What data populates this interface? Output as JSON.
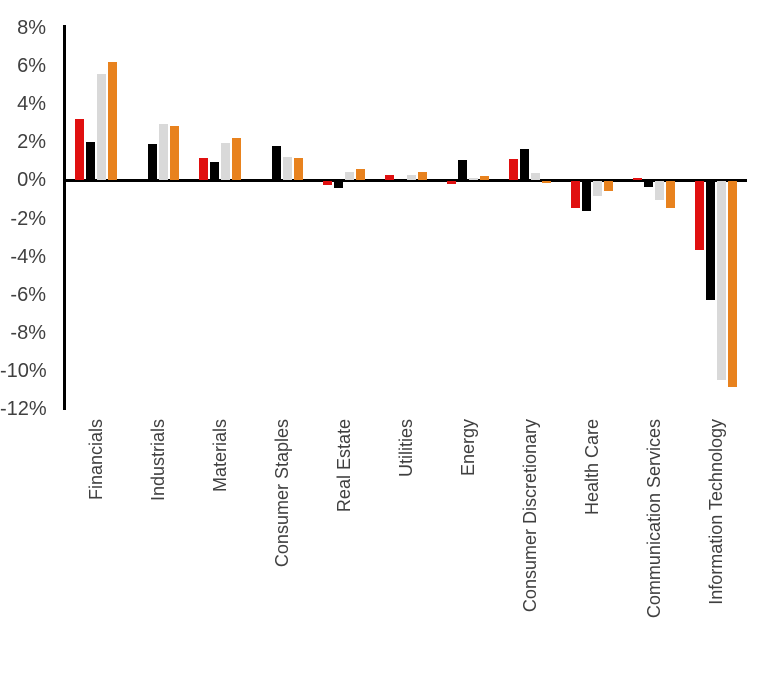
{
  "chart_data": {
    "type": "bar",
    "title": "",
    "xlabel": "",
    "ylabel": "",
    "ylim": [
      -12,
      8
    ],
    "ytick_step": 2,
    "ytick_labels": [
      "8%",
      "6%",
      "4%",
      "2%",
      "0%",
      "-2%",
      "-4%",
      "-6%",
      "-8%",
      "-10%",
      "-12%"
    ],
    "grid": false,
    "legend": "none",
    "text_color": "#404040",
    "axis_color": "#000000",
    "categories": [
      "Financials",
      "Industrials",
      "Materials",
      "Consumer Staples",
      "Real Estate",
      "Utilities",
      "Energy",
      "Consumer Discretionary",
      "Health Care",
      "Communication Services",
      "Information Technology"
    ],
    "series": [
      {
        "name": "red",
        "color": "#e01010",
        "values": [
          3.2,
          0.0,
          1.2,
          0.0,
          -0.2,
          0.3,
          -0.15,
          1.1,
          -1.4,
          0.1,
          -3.6
        ]
      },
      {
        "name": "black",
        "color": "#000000",
        "values": [
          2.0,
          1.9,
          0.95,
          1.8,
          -0.35,
          0.0,
          1.05,
          1.65,
          -1.55,
          -0.3,
          -6.2
        ]
      },
      {
        "name": "gray",
        "color": "#d9d9d9",
        "values": [
          5.6,
          2.95,
          1.95,
          1.25,
          0.45,
          0.3,
          0.15,
          0.4,
          -0.75,
          -1.0,
          -10.4
        ]
      },
      {
        "name": "orange",
        "color": "#e8821e",
        "values": [
          6.2,
          2.85,
          2.2,
          1.2,
          0.6,
          0.45,
          0.25,
          -0.1,
          -0.5,
          -1.4,
          -10.8
        ]
      }
    ]
  }
}
